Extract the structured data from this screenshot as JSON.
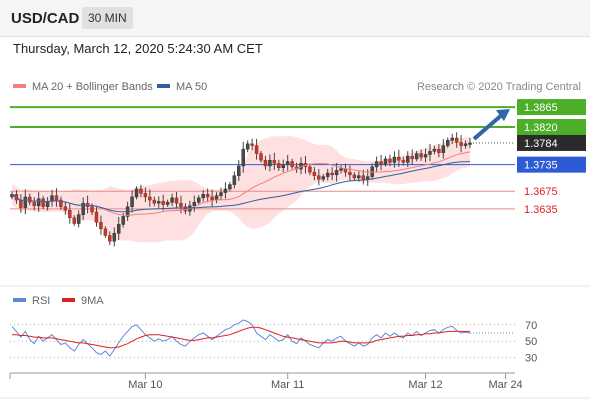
{
  "header": {
    "symbol": "USD/CAD",
    "timeframe": "30 MIN",
    "datetime": "Thursday, March 12, 2020 5:24:30 AM CET"
  },
  "chart_data": {
    "type": "candlestick",
    "price_panel": {
      "legend": [
        {
          "name": "MA 20 + Bollinger Bands",
          "color": "#f08080"
        },
        {
          "name": "MA 50",
          "color": "#2f5f9e"
        }
      ],
      "credit": "Research © 2020 Trading Central",
      "ylim": [
        1.347,
        1.389
      ],
      "current_price": "1.3784",
      "levels": [
        {
          "value": 1.3865,
          "label": "1.3865",
          "kind": "target",
          "color": "#4caf27"
        },
        {
          "value": 1.382,
          "label": "1.3820",
          "kind": "target",
          "color": "#4caf27"
        },
        {
          "value": 1.3735,
          "label": "1.3735",
          "kind": "pivot",
          "color": "#2d5bd6"
        },
        {
          "value": 1.3675,
          "label": "1.3675",
          "kind": "support",
          "color": "#e02020"
        },
        {
          "value": 1.3635,
          "label": "1.3635",
          "kind": "support",
          "color": "#e02020"
        }
      ],
      "close_series": [
        1.3668,
        1.3655,
        1.3638,
        1.3662,
        1.365,
        1.3642,
        1.3658,
        1.364,
        1.3652,
        1.3665,
        1.3655,
        1.364,
        1.3632,
        1.3615,
        1.3602,
        1.3622,
        1.3648,
        1.364,
        1.3628,
        1.3605,
        1.359,
        1.3575,
        1.3562,
        1.358,
        1.36,
        1.3618,
        1.364,
        1.3662,
        1.368,
        1.367,
        1.3662,
        1.3655,
        1.3648,
        1.3652,
        1.3645,
        1.365,
        1.366,
        1.3648,
        1.364,
        1.363,
        1.3642,
        1.365,
        1.366,
        1.3668,
        1.3662,
        1.3655,
        1.3665,
        1.3672,
        1.368,
        1.369,
        1.371,
        1.3732,
        1.377,
        1.3782,
        1.3778,
        1.376,
        1.3745,
        1.3732,
        1.3745,
        1.3738,
        1.3728,
        1.3735,
        1.3742,
        1.373,
        1.3725,
        1.3738,
        1.373,
        1.3718,
        1.371,
        1.3702,
        1.3708,
        1.3716,
        1.3712,
        1.3722,
        1.3726,
        1.3718,
        1.3712,
        1.3705,
        1.371,
        1.3702,
        1.3708,
        1.373,
        1.3742,
        1.3736,
        1.3748,
        1.374,
        1.3752,
        1.3745,
        1.374,
        1.3754,
        1.3748,
        1.376,
        1.3752,
        1.3758,
        1.3765,
        1.377,
        1.3762,
        1.3778,
        1.379,
        1.3795,
        1.3785,
        1.3778,
        1.3782,
        1.3784
      ]
    },
    "rsi_panel": {
      "legend": [
        {
          "name": "RSI",
          "color": "#5b8ad6"
        },
        {
          "name": "9MA",
          "color": "#e02020"
        }
      ],
      "ylim": [
        15,
        88
      ],
      "levels": [
        70,
        50,
        30
      ],
      "rsi_series": [
        68,
        62,
        55,
        62,
        52,
        47,
        56,
        50,
        54,
        58,
        52,
        46,
        48,
        42,
        38,
        46,
        52,
        47,
        42,
        36,
        34,
        38,
        32,
        40,
        48,
        56,
        62,
        68,
        70,
        64,
        58,
        54,
        50,
        53,
        50,
        52,
        56,
        50,
        46,
        44,
        50,
        54,
        58,
        60,
        56,
        52,
        56,
        60,
        64,
        66,
        70,
        72,
        76,
        74,
        70,
        60,
        56,
        52,
        58,
        54,
        50,
        52,
        58,
        50,
        47,
        54,
        50,
        46,
        44,
        42,
        48,
        52,
        50,
        54,
        56,
        50,
        47,
        44,
        48,
        44,
        46,
        54,
        58,
        54,
        60,
        56,
        60,
        56,
        54,
        60,
        57,
        62,
        57,
        60,
        63,
        64,
        60,
        64,
        67,
        68,
        63,
        60,
        61,
        60
      ],
      "ma_series": [
        58,
        58,
        57,
        57,
        56,
        55,
        55,
        54,
        54,
        54,
        53,
        52,
        51,
        50,
        49,
        48,
        48,
        47,
        46,
        45,
        44,
        43,
        42,
        42,
        43,
        45,
        47,
        50,
        53,
        55,
        57,
        58,
        58,
        58,
        57,
        56,
        55,
        54,
        53,
        52,
        51,
        51,
        52,
        53,
        54,
        54,
        55,
        56,
        57,
        58,
        60,
        62,
        64,
        66,
        67,
        67,
        66,
        64,
        62,
        60,
        58,
        56,
        55,
        54,
        53,
        52,
        51,
        50,
        49,
        48,
        48,
        48,
        48,
        49,
        50,
        50,
        49,
        48,
        48,
        48,
        48,
        49,
        51,
        52,
        53,
        54,
        55,
        56,
        56,
        57,
        57,
        58,
        58,
        59,
        59,
        60,
        60,
        61,
        62,
        62,
        62,
        62,
        62,
        62
      ]
    },
    "x_axis": {
      "tick_labels": [
        {
          "label": "Mar 10",
          "index": 30
        },
        {
          "label": "Mar 11",
          "index": 62
        },
        {
          "label": "Mar 12",
          "index": 93
        },
        {
          "label": "Mar 24",
          "index": 111
        }
      ]
    }
  }
}
